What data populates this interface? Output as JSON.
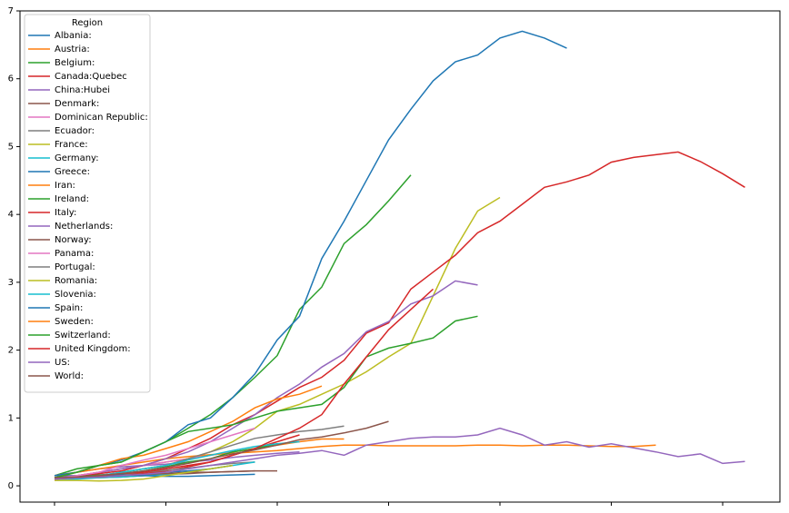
{
  "chart_data": {
    "type": "line",
    "x": [
      0,
      1,
      2,
      3,
      4,
      5,
      6,
      7,
      8,
      9,
      10,
      11,
      12,
      13,
      14,
      15,
      16,
      17,
      18,
      19,
      20,
      21,
      22,
      23,
      24,
      25,
      26,
      27,
      28,
      29,
      30,
      31
    ],
    "xlim": [
      -1.55,
      32.57
    ],
    "xticks": [
      0,
      5,
      10,
      15,
      20,
      25,
      30
    ],
    "ylim": [
      -0.24,
      7.0
    ],
    "yticks": [
      0,
      1,
      2,
      3,
      4,
      5,
      6,
      7
    ],
    "legend_title": "Region",
    "legend_position": "upper left",
    "series": [
      {
        "name": "Albania:",
        "color": "#1f77b4",
        "values": [
          0.1,
          0.12,
          0.14,
          0.16,
          0.18,
          0.2,
          0.22,
          0.25,
          0.3,
          null,
          null,
          null,
          null,
          null,
          null,
          null,
          null,
          null,
          null,
          null,
          null,
          null,
          null,
          null,
          null,
          null,
          null,
          null,
          null,
          null,
          null,
          null
        ]
      },
      {
        "name": "Austria:",
        "color": "#ff7f0e",
        "values": [
          0.12,
          0.15,
          0.2,
          0.25,
          0.3,
          0.35,
          0.4,
          0.45,
          0.5,
          0.55,
          0.6,
          0.65,
          0.69,
          0.69,
          null,
          null,
          null,
          null,
          null,
          null,
          null,
          null,
          null,
          null,
          null,
          null,
          null,
          null,
          null,
          null,
          null,
          null
        ]
      },
      {
        "name": "Belgium:",
        "color": "#2ca02c",
        "values": [
          0.15,
          0.25,
          0.3,
          0.35,
          0.5,
          0.65,
          0.85,
          1.05,
          1.3,
          1.6,
          1.92,
          2.6,
          2.93,
          3.57,
          3.85,
          4.2,
          4.58,
          null,
          null,
          null,
          null,
          null,
          null,
          null,
          null,
          null,
          null,
          null,
          null,
          null,
          null,
          null
        ]
      },
      {
        "name": "Canada:Quebec",
        "color": "#d62728",
        "values": [
          0.1,
          0.12,
          0.13,
          0.15,
          0.18,
          0.22,
          0.28,
          0.35,
          0.45,
          0.55,
          0.65,
          0.75,
          null,
          null,
          null,
          null,
          null,
          null,
          null,
          null,
          null,
          null,
          null,
          null,
          null,
          null,
          null,
          null,
          null,
          null,
          null,
          null
        ]
      },
      {
        "name": "China:Hubei",
        "color": "#9467bd",
        "values": [
          0.15,
          0.2,
          0.25,
          0.28,
          0.3,
          0.32,
          0.35,
          0.38,
          0.42,
          0.45,
          0.48,
          0.5,
          null,
          null,
          null,
          null,
          null,
          null,
          null,
          null,
          null,
          null,
          null,
          null,
          null,
          null,
          null,
          null,
          null,
          null,
          null,
          null
        ]
      },
      {
        "name": "Denmark:",
        "color": "#8c564b",
        "values": [
          0.1,
          0.11,
          0.12,
          0.13,
          0.15,
          0.17,
          0.18,
          0.2,
          0.21,
          0.22,
          null,
          null,
          null,
          null,
          null,
          null,
          null,
          null,
          null,
          null,
          null,
          null,
          null,
          null,
          null,
          null,
          null,
          null,
          null,
          null,
          null,
          null
        ]
      },
      {
        "name": "Dominican Republic:",
        "color": "#e377c2",
        "values": [
          0.12,
          0.15,
          0.2,
          0.25,
          0.3,
          0.35,
          0.4,
          0.45,
          0.5,
          null,
          null,
          null,
          null,
          null,
          null,
          null,
          null,
          null,
          null,
          null,
          null,
          null,
          null,
          null,
          null,
          null,
          null,
          null,
          null,
          null,
          null,
          null
        ]
      },
      {
        "name": "Ecuador:",
        "color": "#7f7f7f",
        "values": [
          0.1,
          0.12,
          0.14,
          0.17,
          0.2,
          0.23,
          0.26,
          0.3,
          0.33,
          0.35,
          null,
          null,
          null,
          null,
          null,
          null,
          null,
          null,
          null,
          null,
          null,
          null,
          null,
          null,
          null,
          null,
          null,
          null,
          null,
          null,
          null,
          null
        ]
      },
      {
        "name": "France:",
        "color": "#bcbd22",
        "values": [
          0.1,
          0.12,
          0.15,
          0.2,
          0.25,
          0.3,
          0.4,
          0.5,
          0.65,
          0.85,
          1.1,
          1.2,
          1.35,
          1.5,
          1.68,
          1.9,
          2.1,
          2.8,
          3.5,
          4.05,
          4.25,
          null,
          null,
          null,
          null,
          null,
          null,
          null,
          null,
          null,
          null,
          null
        ]
      },
      {
        "name": "Germany:",
        "color": "#17becf",
        "values": [
          0.1,
          0.1,
          0.12,
          0.13,
          0.15,
          0.17,
          0.2,
          0.25,
          0.3,
          0.35,
          null,
          null,
          null,
          null,
          null,
          null,
          null,
          null,
          null,
          null,
          null,
          null,
          null,
          null,
          null,
          null,
          null,
          null,
          null,
          null,
          null,
          null
        ]
      },
      {
        "name": "Greece:",
        "color": "#1f77b4",
        "values": [
          0.15,
          0.15,
          0.16,
          0.16,
          0.15,
          0.14,
          0.14,
          0.15,
          0.16,
          0.17,
          null,
          null,
          null,
          null,
          null,
          null,
          null,
          null,
          null,
          null,
          null,
          null,
          null,
          null,
          null,
          null,
          null,
          null,
          null,
          null,
          null,
          null
        ]
      },
      {
        "name": "Iran:",
        "color": "#ff7f0e",
        "values": [
          0.15,
          0.2,
          0.25,
          0.3,
          0.35,
          0.4,
          0.43,
          0.46,
          0.48,
          0.5,
          0.52,
          0.55,
          0.58,
          0.6,
          0.6,
          0.59,
          0.59,
          0.59,
          0.59,
          0.6,
          0.6,
          0.59,
          0.6,
          0.6,
          0.59,
          0.58,
          0.58,
          0.6,
          null,
          null,
          null,
          null
        ]
      },
      {
        "name": "Ireland:",
        "color": "#2ca02c",
        "values": [
          0.12,
          0.14,
          0.16,
          0.18,
          0.22,
          0.28,
          0.35,
          0.4,
          0.5,
          0.55,
          0.62,
          null,
          null,
          null,
          null,
          null,
          null,
          null,
          null,
          null,
          null,
          null,
          null,
          null,
          null,
          null,
          null,
          null,
          null,
          null,
          null,
          null
        ]
      },
      {
        "name": "Italy:",
        "color": "#d62728",
        "values": [
          0.12,
          0.15,
          0.18,
          0.22,
          0.3,
          0.4,
          0.55,
          0.7,
          0.9,
          1.05,
          1.25,
          1.45,
          1.6,
          1.85,
          2.25,
          2.4,
          2.9,
          3.15,
          3.4,
          3.73,
          3.9,
          4.15,
          4.4,
          4.48,
          4.58,
          4.77,
          4.84,
          4.88,
          4.92,
          4.78,
          4.6,
          4.4
        ]
      },
      {
        "name": "Netherlands:",
        "color": "#9467bd",
        "values": [
          0.12,
          0.15,
          0.2,
          0.25,
          0.3,
          0.4,
          0.5,
          0.65,
          0.85,
          1.05,
          1.3,
          1.5,
          1.75,
          1.95,
          2.27,
          2.42,
          2.68,
          2.8,
          3.02,
          2.96,
          null,
          null,
          null,
          null,
          null,
          null,
          null,
          null,
          null,
          null,
          null,
          null
        ]
      },
      {
        "name": "Norway:",
        "color": "#8c564b",
        "values": [
          0.1,
          0.12,
          0.13,
          0.15,
          0.17,
          0.18,
          0.2,
          0.2,
          0.21,
          0.22,
          0.22,
          null,
          null,
          null,
          null,
          null,
          null,
          null,
          null,
          null,
          null,
          null,
          null,
          null,
          null,
          null,
          null,
          null,
          null,
          null,
          null,
          null
        ]
      },
      {
        "name": "Panama:",
        "color": "#e377c2",
        "values": [
          0.1,
          0.15,
          0.2,
          0.3,
          0.38,
          0.45,
          0.55,
          0.65,
          0.75,
          0.85,
          null,
          null,
          null,
          null,
          null,
          null,
          null,
          null,
          null,
          null,
          null,
          null,
          null,
          null,
          null,
          null,
          null,
          null,
          null,
          null,
          null,
          null
        ]
      },
      {
        "name": "Portugal:",
        "color": "#7f7f7f",
        "values": [
          0.1,
          0.12,
          0.15,
          0.2,
          0.25,
          0.3,
          0.4,
          0.5,
          0.6,
          0.7,
          0.75,
          0.8,
          0.83,
          0.88,
          null,
          null,
          null,
          null,
          null,
          null,
          null,
          null,
          null,
          null,
          null,
          null,
          null,
          null,
          null,
          null,
          null,
          null
        ]
      },
      {
        "name": "Romania:",
        "color": "#bcbd22",
        "values": [
          0.08,
          0.08,
          0.07,
          0.08,
          0.1,
          0.15,
          0.2,
          0.25,
          0.3,
          null,
          null,
          null,
          null,
          null,
          null,
          null,
          null,
          null,
          null,
          null,
          null,
          null,
          null,
          null,
          null,
          null,
          null,
          null,
          null,
          null,
          null,
          null
        ]
      },
      {
        "name": "Slovenia:",
        "color": "#17becf",
        "values": [
          0.1,
          0.12,
          0.15,
          0.2,
          0.25,
          0.3,
          0.38,
          0.45,
          0.52,
          0.58,
          0.62,
          0.65,
          null,
          null,
          null,
          null,
          null,
          null,
          null,
          null,
          null,
          null,
          null,
          null,
          null,
          null,
          null,
          null,
          null,
          null,
          null,
          null
        ]
      },
      {
        "name": "Spain:",
        "color": "#1f77b4",
        "values": [
          0.15,
          0.2,
          0.3,
          0.38,
          0.5,
          0.65,
          0.9,
          1.0,
          1.3,
          1.65,
          2.15,
          2.5,
          3.35,
          3.9,
          4.5,
          5.1,
          5.55,
          5.97,
          6.25,
          6.35,
          6.6,
          6.7,
          6.6,
          6.45,
          null,
          null,
          null,
          null,
          null,
          null,
          null,
          null
        ]
      },
      {
        "name": "Sweden:",
        "color": "#ff7f0e",
        "values": [
          0.12,
          0.2,
          0.3,
          0.4,
          0.45,
          0.55,
          0.65,
          0.8,
          0.95,
          1.15,
          1.28,
          1.35,
          1.47,
          null,
          null,
          null,
          null,
          null,
          null,
          null,
          null,
          null,
          null,
          null,
          null,
          null,
          null,
          null,
          null,
          null,
          null,
          null
        ]
      },
      {
        "name": "Switzerland:",
        "color": "#2ca02c",
        "values": [
          0.12,
          0.2,
          0.3,
          0.35,
          0.5,
          0.65,
          0.8,
          0.85,
          0.9,
          1.0,
          1.1,
          1.15,
          1.2,
          1.45,
          1.9,
          2.03,
          2.1,
          2.18,
          2.43,
          2.5,
          null,
          null,
          null,
          null,
          null,
          null,
          null,
          null,
          null,
          null,
          null,
          null
        ]
      },
      {
        "name": "United Kingdom:",
        "color": "#d62728",
        "values": [
          0.1,
          0.12,
          0.15,
          0.18,
          0.2,
          0.25,
          0.3,
          0.35,
          0.45,
          0.55,
          0.7,
          0.85,
          1.05,
          1.5,
          1.9,
          2.3,
          2.6,
          2.9,
          null,
          null,
          null,
          null,
          null,
          null,
          null,
          null,
          null,
          null,
          null,
          null,
          null,
          null
        ]
      },
      {
        "name": "US:",
        "color": "#9467bd",
        "values": [
          0.1,
          0.12,
          0.13,
          0.15,
          0.17,
          0.2,
          0.25,
          0.3,
          0.35,
          0.4,
          0.45,
          0.48,
          0.52,
          0.45,
          0.6,
          0.65,
          0.7,
          0.72,
          0.72,
          0.75,
          0.85,
          0.75,
          0.6,
          0.65,
          0.57,
          0.62,
          0.56,
          0.5,
          0.43,
          0.47,
          0.33,
          0.36
        ]
      },
      {
        "name": "World:",
        "color": "#8c564b",
        "values": [
          0.12,
          0.13,
          0.15,
          0.18,
          0.22,
          0.27,
          0.33,
          0.4,
          0.47,
          0.53,
          0.6,
          0.68,
          0.72,
          0.78,
          0.85,
          0.95,
          null,
          null,
          null,
          null,
          null,
          null,
          null,
          null,
          null,
          null,
          null,
          null,
          null,
          null,
          null,
          null
        ]
      }
    ]
  }
}
